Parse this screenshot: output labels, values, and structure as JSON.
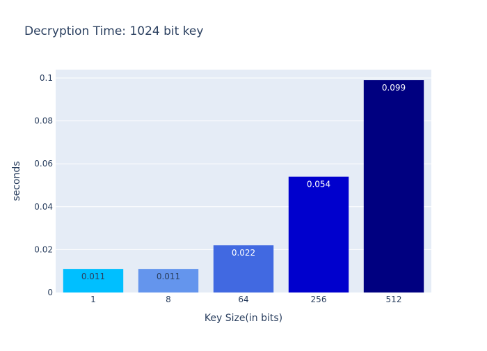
{
  "chart_data": {
    "type": "bar",
    "title": "Decryption Time: 1024 bit key",
    "xlabel": "Key Size(in bits)",
    "ylabel": "seconds",
    "categories": [
      "1",
      "8",
      "64",
      "256",
      "512"
    ],
    "values": [
      0.011,
      0.011,
      0.022,
      0.054,
      0.099
    ],
    "data_labels": [
      "0.011",
      "0.011",
      "0.022",
      "0.054",
      "0.099"
    ],
    "bar_colors": [
      "#00bfff",
      "#6495ed",
      "#4169e1",
      "#0000cd",
      "#000080"
    ],
    "label_colors": [
      "#2a3f5f",
      "#2a3f5f",
      "#ffffff",
      "#ffffff",
      "#ffffff"
    ],
    "yticks": [
      0,
      0.02,
      0.04,
      0.06,
      0.08,
      0.1
    ],
    "ytick_labels": [
      "0",
      "0.02",
      "0.04",
      "0.06",
      "0.08",
      "0.1"
    ],
    "ylim": [
      0,
      0.1
    ],
    "grid": true,
    "plot_background": "#e5ecf6",
    "text_color": "#2a3f5f"
  }
}
